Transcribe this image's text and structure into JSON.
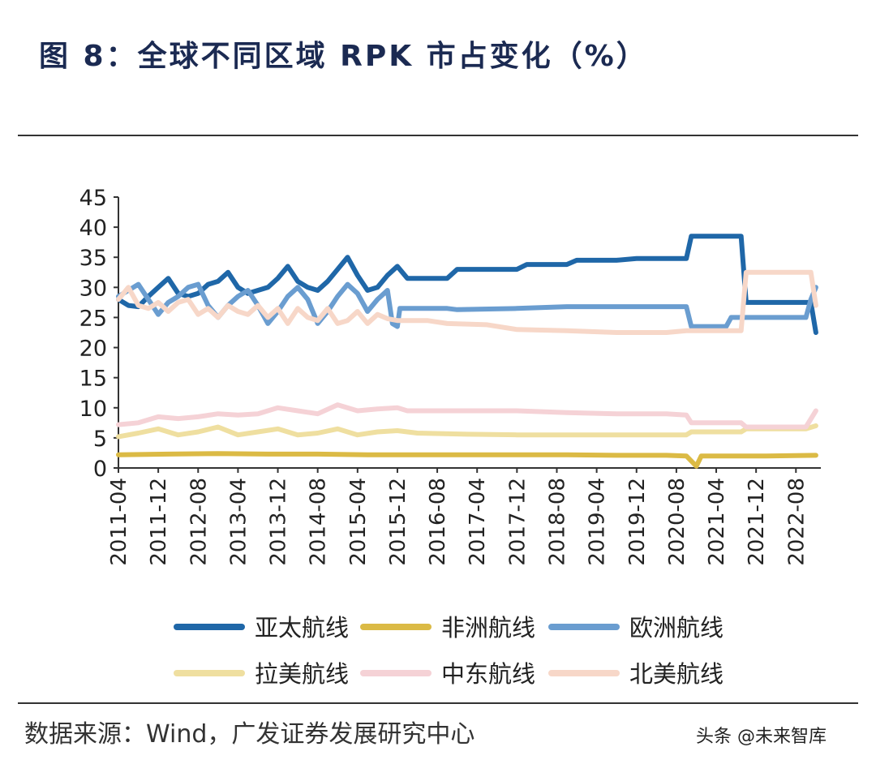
{
  "header": {
    "title": "图 8：全球不同区域 RPK 市占变化（%）"
  },
  "footer": {
    "source": "数据来源：Wind，广发证券发展研究中心",
    "watermark": "头条 @未来智库"
  },
  "chart_data": {
    "type": "line",
    "title": "全球不同区域 RPK 市占变化（%）",
    "xlabel": "",
    "ylabel": "",
    "ylim": [
      0,
      45
    ],
    "yticks": [
      "0",
      "5",
      "10",
      "15",
      "20",
      "25",
      "30",
      "35",
      "40",
      "45"
    ],
    "xticks": [
      "2011-04",
      "2011-12",
      "2012-08",
      "2013-04",
      "2013-12",
      "2014-08",
      "2015-04",
      "2015-12",
      "2016-08",
      "2017-04",
      "2017-12",
      "2018-08",
      "2019-04",
      "2019-12",
      "2020-08",
      "2021-04",
      "2021-12",
      "2022-08"
    ],
    "xrange": [
      0,
      141
    ],
    "legend_position": "bottom",
    "series": [
      {
        "name": "亚太航线",
        "color": "#1f67a8",
        "width": 6,
        "points": [
          [
            0,
            28
          ],
          [
            2,
            27
          ],
          [
            4,
            26.8
          ],
          [
            6,
            28.5
          ],
          [
            8,
            30
          ],
          [
            10,
            31.5
          ],
          [
            12,
            29
          ],
          [
            14,
            28.5
          ],
          [
            16,
            29
          ],
          [
            18,
            30.5
          ],
          [
            20,
            31
          ],
          [
            22,
            32.5
          ],
          [
            24,
            30
          ],
          [
            26,
            29
          ],
          [
            28,
            29.5
          ],
          [
            30,
            30
          ],
          [
            32,
            31.5
          ],
          [
            34,
            33.5
          ],
          [
            36,
            31
          ],
          [
            38,
            30
          ],
          [
            40,
            29.5
          ],
          [
            42,
            31
          ],
          [
            44,
            33
          ],
          [
            46,
            35
          ],
          [
            48,
            32
          ],
          [
            50,
            29.5
          ],
          [
            52,
            30
          ],
          [
            54,
            32
          ],
          [
            56,
            33.5
          ],
          [
            58,
            31.5
          ],
          [
            62,
            31.5
          ],
          [
            66,
            31.5
          ],
          [
            68,
            33
          ],
          [
            74,
            33
          ],
          [
            80,
            33
          ],
          [
            82,
            33.8
          ],
          [
            90,
            33.8
          ],
          [
            92,
            34.5
          ],
          [
            100,
            34.5
          ],
          [
            104,
            34.8
          ],
          [
            114,
            34.8
          ],
          [
            115,
            38.5
          ],
          [
            125,
            38.5
          ],
          [
            126,
            27.5
          ],
          [
            131,
            27.5
          ],
          [
            134,
            27.5
          ],
          [
            139,
            27.5
          ],
          [
            140,
            22.5
          ]
        ]
      },
      {
        "name": "非洲航线",
        "color": "#dbba45",
        "width": 6,
        "points": [
          [
            0,
            2.2
          ],
          [
            10,
            2.3
          ],
          [
            20,
            2.4
          ],
          [
            30,
            2.3
          ],
          [
            40,
            2.3
          ],
          [
            50,
            2.2
          ],
          [
            60,
            2.2
          ],
          [
            70,
            2.2
          ],
          [
            80,
            2.2
          ],
          [
            90,
            2.2
          ],
          [
            100,
            2.1
          ],
          [
            110,
            2.1
          ],
          [
            114,
            2.0
          ],
          [
            116,
            0.3
          ],
          [
            117,
            2.0
          ],
          [
            122,
            2.0
          ],
          [
            130,
            2.0
          ],
          [
            140,
            2.1
          ]
        ]
      },
      {
        "name": "欧洲航线",
        "color": "#6a9dd0",
        "width": 6,
        "points": [
          [
            0,
            28.5
          ],
          [
            2,
            29.5
          ],
          [
            4,
            30.5
          ],
          [
            6,
            28
          ],
          [
            8,
            25.5
          ],
          [
            10,
            27.5
          ],
          [
            12,
            28.5
          ],
          [
            14,
            30
          ],
          [
            16,
            30.5
          ],
          [
            18,
            27
          ],
          [
            20,
            25
          ],
          [
            22,
            27
          ],
          [
            24,
            28.5
          ],
          [
            26,
            29.5
          ],
          [
            28,
            27
          ],
          [
            30,
            24
          ],
          [
            32,
            26
          ],
          [
            34,
            28.5
          ],
          [
            36,
            30
          ],
          [
            38,
            28
          ],
          [
            40,
            24
          ],
          [
            42,
            26
          ],
          [
            44,
            28.5
          ],
          [
            46,
            30.5
          ],
          [
            48,
            29
          ],
          [
            50,
            26
          ],
          [
            52,
            28
          ],
          [
            54,
            29.5
          ],
          [
            55,
            24
          ],
          [
            56,
            23.5
          ],
          [
            56.5,
            26.5
          ],
          [
            64,
            26.5
          ],
          [
            66,
            26.5
          ],
          [
            68,
            26.3
          ],
          [
            80,
            26.5
          ],
          [
            90,
            26.8
          ],
          [
            100,
            26.8
          ],
          [
            114,
            26.8
          ],
          [
            115,
            23.5
          ],
          [
            122,
            23.5
          ],
          [
            123,
            25
          ],
          [
            130,
            25
          ],
          [
            138,
            25
          ],
          [
            139,
            28
          ],
          [
            140,
            30
          ]
        ]
      },
      {
        "name": "拉美航线",
        "color": "#efdfa0",
        "width": 6,
        "points": [
          [
            0,
            5.2
          ],
          [
            4,
            5.8
          ],
          [
            8,
            6.5
          ],
          [
            12,
            5.5
          ],
          [
            16,
            6
          ],
          [
            20,
            6.8
          ],
          [
            24,
            5.5
          ],
          [
            28,
            6
          ],
          [
            32,
            6.5
          ],
          [
            36,
            5.5
          ],
          [
            40,
            5.8
          ],
          [
            44,
            6.5
          ],
          [
            48,
            5.5
          ],
          [
            52,
            6
          ],
          [
            56,
            6.2
          ],
          [
            60,
            5.8
          ],
          [
            70,
            5.6
          ],
          [
            80,
            5.5
          ],
          [
            90,
            5.5
          ],
          [
            100,
            5.5
          ],
          [
            110,
            5.5
          ],
          [
            114,
            5.5
          ],
          [
            115,
            6
          ],
          [
            122,
            6
          ],
          [
            125,
            6
          ],
          [
            126,
            6.5
          ],
          [
            138,
            6.5
          ],
          [
            140,
            7
          ]
        ]
      },
      {
        "name": "中东航线",
        "color": "#f5d2d6",
        "width": 6,
        "points": [
          [
            0,
            7.2
          ],
          [
            4,
            7.5
          ],
          [
            8,
            8.5
          ],
          [
            12,
            8.2
          ],
          [
            16,
            8.5
          ],
          [
            20,
            9
          ],
          [
            24,
            8.8
          ],
          [
            28,
            9
          ],
          [
            32,
            10
          ],
          [
            36,
            9.5
          ],
          [
            40,
            9
          ],
          [
            44,
            10.5
          ],
          [
            48,
            9.5
          ],
          [
            52,
            9.8
          ],
          [
            56,
            10
          ],
          [
            58,
            9.5
          ],
          [
            70,
            9.5
          ],
          [
            80,
            9.5
          ],
          [
            90,
            9.2
          ],
          [
            100,
            9
          ],
          [
            110,
            9
          ],
          [
            114,
            8.8
          ],
          [
            115,
            7.5
          ],
          [
            122,
            7.5
          ],
          [
            125,
            7.5
          ],
          [
            126,
            6.8
          ],
          [
            138,
            6.8
          ],
          [
            140,
            9.5
          ]
        ]
      },
      {
        "name": "北美航线",
        "color": "#f7d7c8",
        "width": 6,
        "points": [
          [
            0,
            28
          ],
          [
            2,
            30
          ],
          [
            4,
            27
          ],
          [
            6,
            26.5
          ],
          [
            8,
            27.5
          ],
          [
            10,
            26
          ],
          [
            12,
            27.5
          ],
          [
            14,
            28
          ],
          [
            16,
            25.5
          ],
          [
            18,
            26.5
          ],
          [
            20,
            25
          ],
          [
            22,
            27
          ],
          [
            24,
            26
          ],
          [
            26,
            25.5
          ],
          [
            28,
            27
          ],
          [
            30,
            25
          ],
          [
            32,
            26.5
          ],
          [
            34,
            24
          ],
          [
            36,
            26.5
          ],
          [
            38,
            25
          ],
          [
            40,
            24.5
          ],
          [
            42,
            26.5
          ],
          [
            44,
            24
          ],
          [
            46,
            24.5
          ],
          [
            48,
            26
          ],
          [
            50,
            24
          ],
          [
            52,
            25.5
          ],
          [
            54,
            24.8
          ],
          [
            56,
            24.5
          ],
          [
            62,
            24.5
          ],
          [
            66,
            24
          ],
          [
            74,
            23.8
          ],
          [
            80,
            23
          ],
          [
            90,
            22.8
          ],
          [
            100,
            22.5
          ],
          [
            110,
            22.5
          ],
          [
            114,
            22.8
          ],
          [
            122,
            22.8
          ],
          [
            125,
            22.8
          ],
          [
            126,
            32.5
          ],
          [
            136,
            32.5
          ],
          [
            139,
            32.5
          ],
          [
            140,
            27
          ]
        ]
      }
    ]
  }
}
